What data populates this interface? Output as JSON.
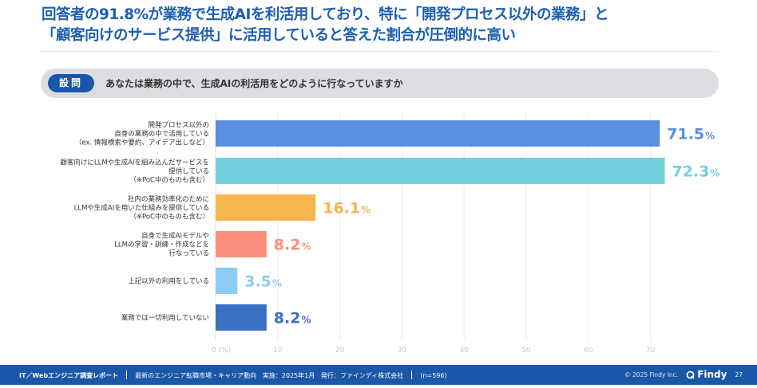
{
  "title": {
    "line1": "回答者の91.8%が業務で生成AIを利活用しており、特に「開発プロセス以外の業務」と",
    "line2": "「顧客向けのサービス提供」に活用していると答えた割合が圧倒的に高い"
  },
  "question": {
    "badge": "設問",
    "text": "あなたは業務の中で、生成AIの利活用をどのように行なっていますか"
  },
  "chart_data": {
    "type": "bar",
    "orientation": "horizontal",
    "title": "あなたは業務の中で、生成AIの利活用をどのように行なっていますか",
    "xlabel": "(%)",
    "ylabel": "",
    "xlim": [
      0,
      75
    ],
    "grid": true,
    "x_ticks": [
      0,
      10,
      20,
      30,
      40,
      50,
      60,
      70
    ],
    "x_tick_labels": [
      "0 (%)",
      "10",
      "20",
      "30",
      "40",
      "50",
      "60",
      "70"
    ],
    "categories": [
      [
        "開発プロセス以外の",
        "自身の業務の中で活用している",
        "（ex. 情報検索や要約、アイデア出しなど）"
      ],
      [
        "顧客向けにLLMや生成AIを組み込んだサービスを",
        "提供している",
        "（※PoC中のものも含む）"
      ],
      [
        "社内の業務効率化のために",
        "LLMや生成AIを用いた仕組みを提供している",
        "（※PoC中のものも含む）"
      ],
      [
        "自身で生成AIモデルや",
        "LLMの学習・訓練・作成などを",
        "行なっている"
      ],
      [
        "上記以外の利用をしている"
      ],
      [
        "業務では一切利用していない"
      ]
    ],
    "values": [
      71.5,
      72.3,
      16.1,
      8.2,
      3.5,
      8.2
    ],
    "value_labels": [
      "71.5",
      "72.3",
      "16.1",
      "8.2",
      "3.5",
      "8.2"
    ],
    "value_suffix": "%",
    "colors": [
      "#5b8fe0",
      "#72d0dc",
      "#f5b64d",
      "#fb8e7c",
      "#8ccbf2",
      "#3a70c2"
    ]
  },
  "footer": {
    "report": "IT／Webエンジニア調査レポート",
    "subtitle": "最新のエンジニア転職市場・キャリア動向",
    "date": "実施：2025年1月",
    "publisher": "発行：ファインディ株式会社",
    "sample": "(n=596)",
    "copyright": "© 2025 Findy Inc.",
    "logo": "Findy",
    "page": "27"
  }
}
